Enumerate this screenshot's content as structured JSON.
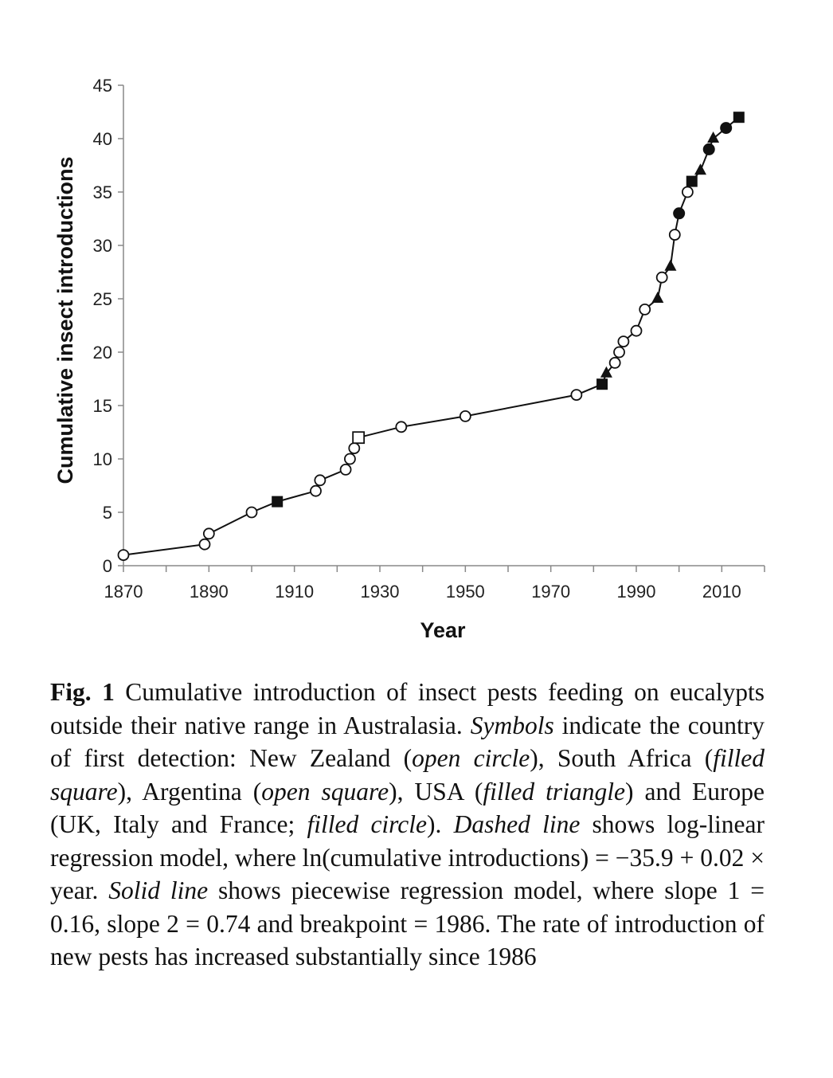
{
  "chart_data": {
    "type": "line",
    "xlabel": "Year",
    "ylabel": "Cumulative insect introductions",
    "xlim": [
      1870,
      2020
    ],
    "ylim": [
      0,
      45
    ],
    "x_ticks": [
      1870,
      1890,
      1910,
      1930,
      1950,
      1970,
      1990,
      2010
    ],
    "y_ticks": [
      0,
      5,
      10,
      15,
      20,
      25,
      30,
      35,
      40,
      45
    ],
    "grid": false,
    "markers": {
      "NZ": "open-circle",
      "SA": "filled-square",
      "AR": "open-square",
      "US": "filled-triangle",
      "EU": "filled-circle"
    },
    "points": [
      {
        "x": 1870,
        "y": 1,
        "m": "NZ"
      },
      {
        "x": 1889,
        "y": 2,
        "m": "NZ"
      },
      {
        "x": 1890,
        "y": 3,
        "m": "NZ"
      },
      {
        "x": 1900,
        "y": 5,
        "m": "NZ"
      },
      {
        "x": 1906,
        "y": 6,
        "m": "SA"
      },
      {
        "x": 1915,
        "y": 7,
        "m": "NZ"
      },
      {
        "x": 1916,
        "y": 8,
        "m": "NZ"
      },
      {
        "x": 1922,
        "y": 9,
        "m": "NZ"
      },
      {
        "x": 1923,
        "y": 10,
        "m": "NZ"
      },
      {
        "x": 1924,
        "y": 11,
        "m": "NZ"
      },
      {
        "x": 1925,
        "y": 12,
        "m": "AR"
      },
      {
        "x": 1935,
        "y": 13,
        "m": "NZ"
      },
      {
        "x": 1950,
        "y": 14,
        "m": "NZ"
      },
      {
        "x": 1976,
        "y": 16,
        "m": "NZ"
      },
      {
        "x": 1982,
        "y": 17,
        "m": "SA"
      },
      {
        "x": 1983,
        "y": 18,
        "m": "US"
      },
      {
        "x": 1985,
        "y": 19,
        "m": "NZ"
      },
      {
        "x": 1986,
        "y": 20,
        "m": "NZ"
      },
      {
        "x": 1987,
        "y": 21,
        "m": "NZ"
      },
      {
        "x": 1990,
        "y": 22,
        "m": "NZ"
      },
      {
        "x": 1992,
        "y": 24,
        "m": "NZ"
      },
      {
        "x": 1995,
        "y": 25,
        "m": "US"
      },
      {
        "x": 1996,
        "y": 27,
        "m": "NZ"
      },
      {
        "x": 1998,
        "y": 28,
        "m": "US"
      },
      {
        "x": 1999,
        "y": 31,
        "m": "NZ"
      },
      {
        "x": 2000,
        "y": 33,
        "m": "EU"
      },
      {
        "x": 2002,
        "y": 35,
        "m": "NZ"
      },
      {
        "x": 2003,
        "y": 36,
        "m": "SA"
      },
      {
        "x": 2005,
        "y": 37,
        "m": "US"
      },
      {
        "x": 2007,
        "y": 39,
        "m": "EU"
      },
      {
        "x": 2008,
        "y": 40,
        "m": "US"
      },
      {
        "x": 2011,
        "y": 41,
        "m": "EU"
      },
      {
        "x": 2014,
        "y": 42,
        "m": "SA"
      }
    ]
  },
  "caption": {
    "fig_label": "Fig. 1",
    "s1": " Cumulative introduction of insect pests feeding on eucalypts outside their native range in Australasia. ",
    "i1": "Symbols",
    "s2": " indicate the country of first detection: New Zealand (",
    "i2": "open circle",
    "s3": "), South Africa (",
    "i3": "filled square",
    "s4": "), Argentina (",
    "i4": "open square",
    "s5": "), USA (",
    "i5": "filled triangle",
    "s6": ") and Europe (UK, Italy and France; ",
    "i6": "filled circle",
    "s7": "). ",
    "i7": "Dashed line",
    "s8": " shows log-linear regression model, where ln(cumulative introductions) = −35.9 + 0.02 × year. ",
    "i8": "Solid line",
    "s9": " shows piecewise regression model, where slope 1 = 0.16, slope 2 = 0.74 and breakpoint = 1986. The rate of introduction of new pests has increased substantially since 1986"
  }
}
